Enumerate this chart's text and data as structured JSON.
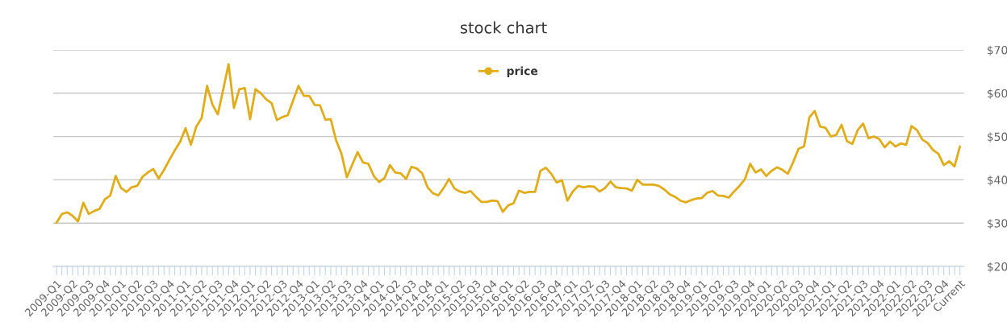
{
  "chart_data": {
    "type": "line",
    "title": "stock chart",
    "categories": [
      "2009-Q1",
      null,
      null,
      "2009-Q2",
      null,
      null,
      "2009-Q3",
      null,
      null,
      "2009-Q4",
      null,
      null,
      "2010-Q1",
      null,
      null,
      "2010-Q2",
      null,
      null,
      "2010-Q3",
      null,
      null,
      "2010-Q4",
      null,
      null,
      "2011-Q1",
      null,
      null,
      "2011-Q2",
      null,
      null,
      "2011-Q3",
      null,
      null,
      "2011-Q4",
      null,
      null,
      "2012-Q1",
      null,
      null,
      "2012-Q2",
      null,
      null,
      "2012-Q3",
      null,
      null,
      "2012-Q4",
      null,
      null,
      "2013-Q1",
      null,
      null,
      "2013-Q2",
      null,
      null,
      "2013-Q3",
      null,
      null,
      "2013-Q4",
      null,
      null,
      "2014-Q1",
      null,
      null,
      "2014-Q2",
      null,
      null,
      "2014-Q3",
      null,
      null,
      "2014-Q4",
      null,
      null,
      "2015-Q1",
      null,
      null,
      "2015-Q2",
      null,
      null,
      "2015-Q3",
      null,
      null,
      "2015-Q4",
      null,
      null,
      "2016-Q1",
      null,
      null,
      "2016-Q2",
      null,
      null,
      "2016-Q3",
      null,
      null,
      "2016-Q4",
      null,
      null,
      "2017-Q1",
      null,
      null,
      "2017-Q2",
      null,
      null,
      "2017-Q3",
      null,
      null,
      "2017-Q4",
      null,
      null,
      "2018-Q1",
      null,
      null,
      "2018-Q2",
      null,
      null,
      "2018-Q3",
      null,
      null,
      "2018-Q4",
      null,
      null,
      "2019-Q1",
      null,
      null,
      "2019-Q2",
      null,
      null,
      "2019-Q3",
      null,
      null,
      "2019-Q4",
      null,
      null,
      "2020-Q1",
      null,
      null,
      "2020-Q2",
      null,
      null,
      "2020-Q3",
      null,
      null,
      "2020-Q4",
      null,
      null,
      "2021-Q1",
      null,
      null,
      "2021-Q2",
      null,
      null,
      "2021-Q3",
      null,
      null,
      "2021-Q4",
      null,
      null,
      "2022-Q1",
      null,
      null,
      "2022-Q2",
      null,
      null,
      "2022-Q3",
      null,
      null,
      "2022-Q4",
      null,
      null,
      "Current"
    ],
    "series": [
      {
        "name": "price",
        "color": "#e0ac1a",
        "values": [
          30.1,
          32.1,
          32.5,
          31.7,
          30.4,
          34.7,
          32.1,
          32.8,
          33.3,
          35.5,
          36.4,
          40.9,
          38.1,
          37.2,
          38.3,
          38.6,
          40.7,
          41.7,
          42.5,
          40.3,
          42.3,
          44.6,
          46.8,
          48.8,
          51.9,
          48.1,
          52.3,
          54.3,
          61.7,
          57.4,
          55.1,
          60.8,
          66.7,
          56.6,
          60.9,
          61.2,
          54.0,
          60.9,
          60.0,
          58.6,
          57.7,
          53.8,
          54.5,
          54.9,
          58.3,
          61.7,
          59.4,
          59.4,
          57.3,
          57.2,
          53.9,
          54.0,
          49.1,
          46.0,
          40.6,
          43.5,
          46.4,
          44.0,
          43.7,
          40.9,
          39.5,
          40.4,
          43.4,
          41.7,
          41.5,
          40.2,
          43.0,
          42.6,
          41.5,
          38.3,
          36.9,
          36.4,
          38.1,
          40.2,
          38.0,
          37.3,
          37.0,
          37.4,
          36.1,
          34.9,
          34.9,
          35.2,
          35.1,
          32.6,
          34.1,
          34.6,
          37.5,
          37.0,
          37.2,
          37.2,
          42.1,
          42.8,
          41.4,
          39.4,
          39.9,
          35.2,
          37.3,
          38.6,
          38.3,
          38.5,
          38.4,
          37.3,
          38.1,
          39.6,
          38.3,
          38.1,
          38.0,
          37.5,
          40.0,
          38.9,
          38.9,
          38.9,
          38.6,
          37.8,
          36.7,
          36.1,
          35.2,
          34.8,
          35.3,
          35.7,
          35.8,
          37.0,
          37.4,
          36.4,
          36.3,
          35.9,
          37.3,
          38.6,
          40.1,
          43.7,
          41.7,
          42.4,
          40.9,
          42.1,
          42.9,
          42.3,
          41.4,
          44.1,
          47.2,
          47.7,
          54.4,
          55.9,
          52.3,
          52.0,
          50.0,
          50.4,
          52.7,
          48.9,
          48.3,
          51.5,
          53.0,
          49.6,
          50.0,
          49.4,
          47.5,
          48.8,
          47.7,
          48.4,
          48.1,
          52.4,
          51.5,
          49.3,
          48.5,
          46.9,
          46.0,
          43.4,
          44.3,
          43.1,
          47.7
        ]
      }
    ],
    "ylim": [
      20,
      70
    ],
    "yticks": [
      {
        "value": 20,
        "label": "$20"
      },
      {
        "value": 30,
        "label": "$30"
      },
      {
        "value": 40,
        "label": "$40"
      },
      {
        "value": 50,
        "label": "$50"
      },
      {
        "value": 60,
        "label": "$60"
      },
      {
        "value": 70,
        "label": "$70"
      }
    ],
    "grid": "y",
    "legend": "top"
  }
}
